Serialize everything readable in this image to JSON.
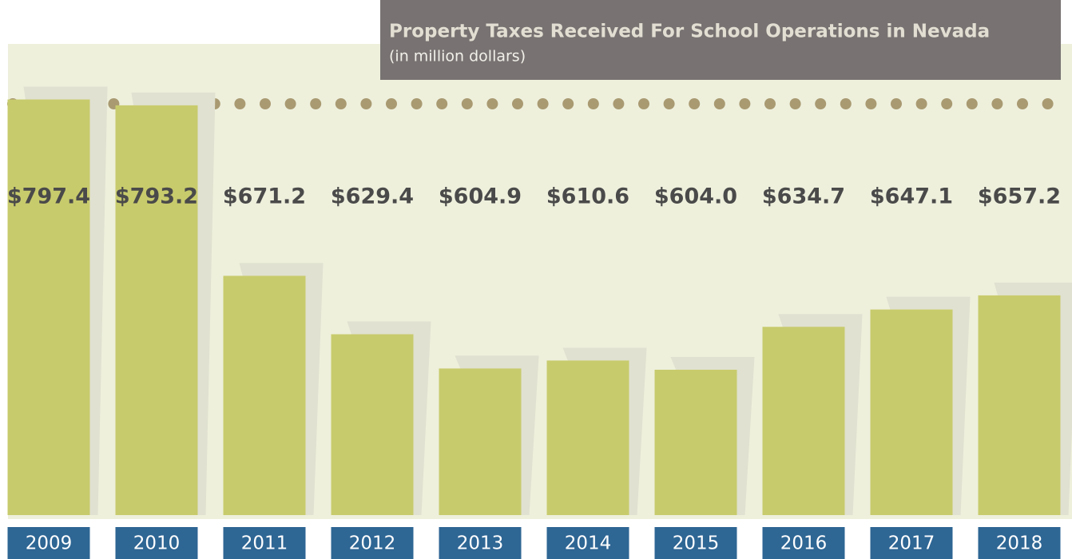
{
  "chart_data": {
    "type": "bar",
    "title": "Property Taxes Received For School Operations in Nevada",
    "subtitle": "(in million dollars)",
    "categories": [
      "2009",
      "2010",
      "2011",
      "2012",
      "2013",
      "2014",
      "2015",
      "2016",
      "2017",
      "2018"
    ],
    "values": [
      797.4,
      793.2,
      671.2,
      629.4,
      604.9,
      610.6,
      604.0,
      634.7,
      647.1,
      657.2
    ],
    "value_labels": [
      "$797.4",
      "$793.2",
      "$671.2",
      "$629.4",
      "$604.9",
      "$610.6",
      "$604.0",
      "$634.7",
      "$647.1",
      "$657.2"
    ],
    "color": "#c8cb6c",
    "ylim": [
      500,
      800
    ]
  }
}
